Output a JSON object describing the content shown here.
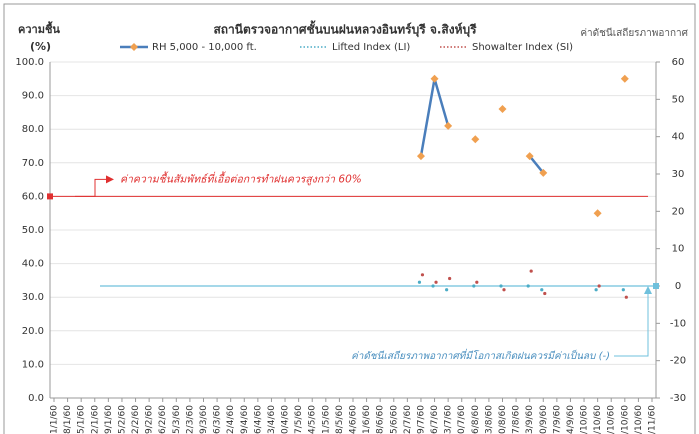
{
  "chart_data": {
    "type": "line",
    "title": "สถานีตรวจอากาศชั้นบนฝนหลวงอินทร์บุรี  จ.สิงห์บุรี",
    "y_label": "ความชื้น",
    "y_unit": "(%)",
    "y2_label": "ค่าดัชนีเสถียรภาพอากาศ",
    "categories": [
      "1/1/60",
      "8/1/60",
      "15/1/60",
      "22/1/60",
      "29/1/60",
      "5/2/60",
      "12/2/60",
      "19/2/60",
      "26/2/60",
      "5/3/60",
      "12/3/60",
      "19/3/60",
      "26/3/60",
      "2/4/60",
      "9/4/60",
      "16/4/60",
      "23/4/60",
      "30/4/60",
      "7/5/60",
      "14/5/60",
      "21/5/60",
      "28/5/60",
      "4/6/60",
      "11/6/60",
      "18/6/60",
      "25/6/60",
      "2/7/60",
      "9/7/60",
      "16/7/60",
      "23/7/60",
      "30/7/60",
      "6/8/60",
      "13/8/60",
      "20/8/60",
      "27/8/60",
      "3/9/60",
      "10/9/60",
      "17/9/60",
      "24/9/60",
      "1/10/60",
      "8/10/60",
      "15/10/60",
      "22/10/60",
      "29/10/60",
      "5/11/60"
    ],
    "series": [
      {
        "name": "RH 5,000 - 10,000 ft.",
        "color": "#4a7ebb",
        "marker_color": "#f0a050",
        "axis": "y",
        "values": [
          null,
          null,
          null,
          null,
          null,
          null,
          null,
          null,
          null,
          null,
          null,
          null,
          null,
          null,
          null,
          null,
          null,
          null,
          null,
          null,
          null,
          null,
          null,
          null,
          null,
          null,
          null,
          72,
          95,
          81,
          null,
          77,
          null,
          86,
          null,
          72,
          67,
          null,
          null,
          null,
          55,
          null,
          95,
          null,
          null
        ]
      },
      {
        "name": "Lifted Index (LI)",
        "color": "#4bacc6",
        "axis": "y2",
        "values": [
          null,
          null,
          null,
          null,
          null,
          null,
          null,
          null,
          null,
          null,
          null,
          null,
          null,
          null,
          null,
          null,
          null,
          null,
          null,
          null,
          null,
          null,
          null,
          null,
          null,
          null,
          null,
          1,
          0,
          -1,
          null,
          0,
          null,
          0,
          null,
          0,
          -1,
          null,
          null,
          null,
          -1,
          null,
          -1,
          null,
          null
        ]
      },
      {
        "name": "Showalter Index (SI)",
        "color": "#c0504d",
        "axis": "y2",
        "values": [
          null,
          null,
          null,
          null,
          null,
          null,
          null,
          null,
          null,
          null,
          null,
          null,
          null,
          null,
          null,
          null,
          null,
          null,
          null,
          null,
          null,
          null,
          null,
          null,
          null,
          null,
          null,
          3,
          1,
          2,
          null,
          1,
          null,
          -1,
          null,
          4,
          -2,
          null,
          null,
          null,
          0,
          null,
          -3,
          null,
          null
        ]
      }
    ],
    "ylim": [
      0,
      100
    ],
    "yticks": [
      {
        "value": 0,
        "label": "0.0"
      },
      {
        "value": 10,
        "label": "10.0"
      },
      {
        "value": 20,
        "label": "20.0"
      },
      {
        "value": 30,
        "label": "30.0"
      },
      {
        "value": 40,
        "label": "40.0"
      },
      {
        "value": 50,
        "label": "50.0"
      },
      {
        "value": 60,
        "label": "60.0"
      },
      {
        "value": 70,
        "label": "70.0"
      },
      {
        "value": 80,
        "label": "80.0"
      },
      {
        "value": 90,
        "label": "90.0"
      },
      {
        "value": 100,
        "label": "100.0"
      }
    ],
    "y2lim": [
      -30,
      60
    ],
    "y2ticks": [
      -30,
      -20,
      -10,
      0,
      10,
      20,
      30,
      40,
      50,
      60
    ],
    "grid": true,
    "reference_lines": [
      {
        "value": 60,
        "axis": "y",
        "color": "#e03030",
        "label": "ค่าความชื้นสัมพัทธ์ที่เอื้อต่อการทำฝนควรสูงกว่า 60%"
      },
      {
        "value": 0,
        "axis": "y2",
        "color": "#6fc0dc",
        "label": "ค่าดัชนีเสถียรภาพอากาศที่มีโอกาสเกิดฝนควรมีค่าเป็นลบ (-)"
      }
    ]
  }
}
